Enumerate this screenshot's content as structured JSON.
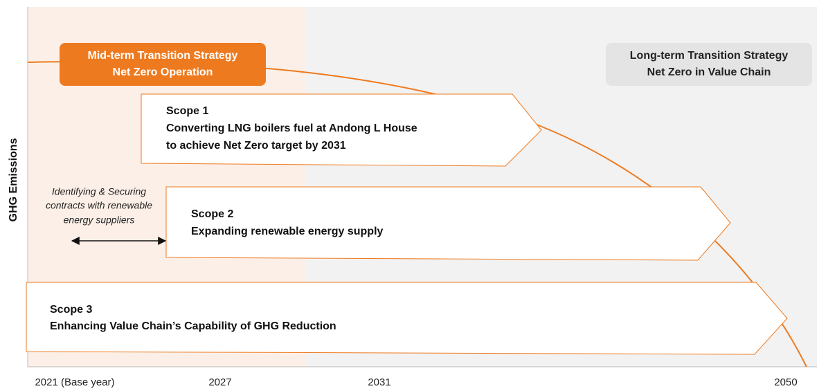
{
  "axis": {
    "y_label": "GHG Emissions",
    "x_labels": [
      "2021 (Base year)",
      "2027",
      "2031",
      "2050"
    ]
  },
  "phases": [
    {
      "title": "Mid-term Transition Strategy",
      "subtitle": "Net Zero Operation"
    },
    {
      "title": "Long-term Transition Strategy",
      "subtitle": "Net Zero in Value Chain"
    }
  ],
  "scopes": [
    {
      "name": "Scope 1",
      "lines": [
        "Converting LNG boilers fuel at Andong L House",
        "to achieve Net Zero target by 2031"
      ]
    },
    {
      "name": "Scope 2",
      "lines": [
        "Expanding renewable energy supply"
      ]
    },
    {
      "name": "Scope 3",
      "lines": [
        "Enhancing Value Chain’s Capability of GHG  Reduction"
      ]
    }
  ],
  "note": [
    "Identifying & Securing",
    "contracts with renewable",
    "energy suppliers"
  ]
}
